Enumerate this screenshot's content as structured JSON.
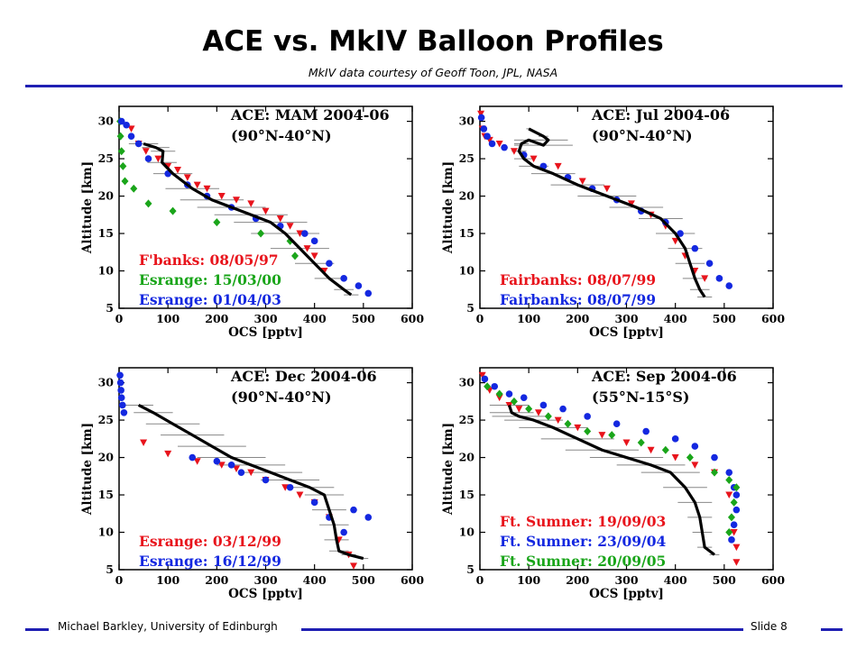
{
  "slide": {
    "title": "ACE vs. MkIV Balloon Profiles",
    "subtitle": "MkIV data courtesy of Geoff Toon, JPL, NASA",
    "footer_left": "Michael Barkley, University of Edinburgh",
    "footer_right": "Slide 8"
  },
  "colors": {
    "accent": "#1f1fb3",
    "red": "#e8141c",
    "green": "#1aa51a",
    "blue": "#1428e0",
    "ace": "#000000",
    "errorbar": "#888888"
  },
  "chart_data": [
    {
      "type": "line",
      "title": "ACE: MAM 2004-06",
      "region": "(90°N-40°N)",
      "xlabel": "OCS [pptv]",
      "ylabel": "Altitude [km]",
      "xlim": [
        0,
        600
      ],
      "ylim": [
        5,
        32
      ],
      "xticks": [
        0,
        100,
        200,
        300,
        400,
        500,
        600
      ],
      "yticks": [
        5,
        10,
        15,
        20,
        25,
        30
      ],
      "ace": {
        "x": [
          50,
          75,
          90,
          88,
          110,
          150,
          190,
          230,
          270,
          310,
          340,
          370,
          400,
          430,
          460,
          475
        ],
        "y": [
          27,
          26.5,
          26,
          24.5,
          23,
          21,
          19.5,
          18.5,
          17.5,
          16.5,
          15,
          13,
          11,
          9,
          7.5,
          6.8
        ],
        "err_halfwidth": [
          30,
          28,
          25,
          30,
          40,
          55,
          65,
          70,
          75,
          75,
          70,
          60,
          40,
          30,
          20,
          15
        ]
      },
      "series": [
        {
          "name": "F'banks: 08/05/97",
          "color": "red",
          "marker": "triangle",
          "x": [
            25,
            40,
            55,
            80,
            100,
            120,
            140,
            160,
            180,
            210,
            240,
            270,
            300,
            330,
            350,
            370,
            385,
            400,
            420
          ],
          "y": [
            29,
            27,
            26,
            25,
            24,
            23.5,
            22.5,
            21.5,
            21,
            20,
            19.5,
            19,
            18,
            17,
            16,
            15,
            13,
            12,
            10
          ]
        },
        {
          "name": "Esrange: 15/03/00",
          "color": "green",
          "marker": "diamond",
          "x": [
            2,
            3,
            5,
            8,
            12,
            30,
            60,
            110,
            200,
            290,
            350,
            360
          ],
          "y": [
            30,
            28,
            26,
            24,
            22,
            21,
            19,
            18,
            16.5,
            15,
            14,
            12
          ]
        },
        {
          "name": "Esrange: 01/04/03",
          "color": "blue",
          "marker": "circle",
          "x": [
            5,
            15,
            25,
            40,
            60,
            100,
            140,
            180,
            230,
            280,
            330,
            380,
            400,
            430,
            460,
            490,
            510
          ],
          "y": [
            30,
            29.5,
            28,
            27,
            25,
            23,
            21.5,
            20,
            18.5,
            17,
            16,
            15,
            14,
            11,
            9,
            8,
            7
          ]
        }
      ]
    },
    {
      "type": "line",
      "title": "ACE: Jul 2004-06",
      "region": "(90°N-40°N)",
      "xlabel": "OCS [pptv]",
      "ylabel": "Altitude [km]",
      "xlim": [
        0,
        600
      ],
      "ylim": [
        5,
        32
      ],
      "xticks": [
        0,
        100,
        200,
        300,
        400,
        500,
        600
      ],
      "yticks": [
        5,
        10,
        15,
        20,
        25,
        30
      ],
      "ace": {
        "x": [
          100,
          130,
          140,
          130,
          100,
          85,
          80,
          90,
          110,
          150,
          200,
          260,
          320,
          370,
          400,
          420,
          430,
          440,
          450,
          460
        ],
        "y": [
          29,
          28,
          27.5,
          26.8,
          27.5,
          27,
          26,
          25,
          24,
          23,
          21.5,
          20,
          18.5,
          17,
          15,
          13,
          11,
          9,
          7.5,
          6.5
        ],
        "err_halfwidth": [
          5,
          10,
          40,
          60,
          30,
          15,
          15,
          20,
          30,
          45,
          55,
          60,
          55,
          45,
          40,
          35,
          30,
          25,
          20,
          15
        ]
      },
      "series": [
        {
          "name": "Fairbanks: 08/07/99",
          "color": "red",
          "marker": "triangle",
          "x": [
            2,
            5,
            10,
            20,
            40,
            70,
            110,
            160,
            210,
            260,
            310,
            350,
            380,
            400,
            420,
            440,
            460
          ],
          "y": [
            31,
            29,
            28,
            27.5,
            27,
            26,
            25,
            24,
            22,
            21,
            19,
            17.5,
            16,
            14,
            12,
            10,
            9
          ]
        },
        {
          "name": "Fairbanks: 08/07/99",
          "color": "blue",
          "marker": "circle",
          "x": [
            3,
            8,
            15,
            25,
            50,
            90,
            130,
            180,
            230,
            280,
            330,
            380,
            410,
            440,
            470,
            490,
            510
          ],
          "y": [
            30.5,
            29,
            28,
            27,
            26.5,
            25.5,
            24,
            22.5,
            21,
            19.5,
            18,
            16.5,
            15,
            13,
            11,
            9,
            8
          ]
        }
      ]
    },
    {
      "type": "line",
      "title": "ACE: Dec 2004-06",
      "region": "(90°N-40°N)",
      "xlabel": "OCS [pptv]",
      "ylabel": "Altitude [km]",
      "xlim": [
        0,
        600
      ],
      "ylim": [
        5,
        32
      ],
      "xticks": [
        0,
        100,
        200,
        300,
        400,
        500,
        600
      ],
      "yticks": [
        5,
        10,
        15,
        20,
        25,
        30
      ],
      "ace": {
        "x": [
          40,
          70,
          110,
          150,
          190,
          230,
          270,
          310,
          350,
          390,
          420,
          430,
          440,
          445,
          450,
          470,
          500
        ],
        "y": [
          27,
          26,
          24.5,
          23,
          21.5,
          20,
          19,
          18,
          17,
          16,
          15,
          13,
          11,
          9,
          7.5,
          7,
          6.5
        ],
        "err_halfwidth": [
          30,
          40,
          55,
          65,
          70,
          70,
          70,
          65,
          60,
          50,
          40,
          35,
          30,
          25,
          20,
          15,
          10
        ]
      },
      "series": [
        {
          "name": "Esrange: 03/12/99",
          "color": "red",
          "marker": "triangle",
          "x": [
            50,
            100,
            160,
            210,
            240,
            270,
            300,
            340,
            370,
            400,
            430,
            450,
            470,
            480
          ],
          "y": [
            22,
            20.5,
            19.5,
            19,
            18.5,
            18,
            17,
            16,
            15,
            14,
            12,
            9,
            7,
            5.5
          ]
        },
        {
          "name": "Esrange: 16/12/99",
          "color": "blue",
          "marker": "circle",
          "x": [
            2,
            3,
            4,
            5,
            7,
            10,
            150,
            200,
            230,
            250,
            300,
            350,
            400,
            430,
            460,
            480,
            510
          ],
          "y": [
            31,
            30,
            29,
            28,
            27,
            26,
            20,
            19.5,
            19,
            18,
            17,
            16,
            14,
            12,
            10,
            13,
            12
          ]
        }
      ]
    },
    {
      "type": "line",
      "title": "ACE: Sep 2004-06",
      "region": "(55°N-15°S)",
      "xlabel": "OCS [pptv]",
      "ylabel": "Altitude [km]",
      "xlim": [
        0,
        600
      ],
      "ylim": [
        5,
        32
      ],
      "xticks": [
        0,
        100,
        200,
        300,
        400,
        500,
        600
      ],
      "yticks": [
        5,
        10,
        15,
        20,
        25,
        30
      ],
      "ace": {
        "x": [
          60,
          65,
          80,
          110,
          150,
          200,
          250,
          300,
          350,
          390,
          420,
          440,
          450,
          455,
          460,
          480
        ],
        "y": [
          27,
          26,
          25.5,
          25,
          24,
          22.5,
          21,
          20,
          19,
          18,
          16,
          14,
          12,
          10,
          8,
          7
        ],
        "err_halfwidth": [
          40,
          45,
          55,
          60,
          70,
          75,
          75,
          75,
          70,
          60,
          45,
          35,
          25,
          20,
          15,
          10
        ]
      },
      "series": [
        {
          "name": "Ft. Sumner: 19/09/03",
          "color": "red",
          "marker": "triangle",
          "x": [
            5,
            20,
            40,
            60,
            80,
            120,
            160,
            200,
            250,
            300,
            350,
            400,
            440,
            480,
            510,
            520,
            525,
            525
          ],
          "y": [
            31,
            29,
            28,
            27,
            26.5,
            26,
            25,
            24,
            23,
            22,
            21,
            20,
            19,
            18,
            15,
            10,
            8,
            6
          ]
        },
        {
          "name": "Ft. Sumner: 23/09/04",
          "color": "blue",
          "marker": "circle",
          "x": [
            10,
            30,
            60,
            90,
            130,
            170,
            220,
            280,
            340,
            400,
            440,
            480,
            510,
            520,
            525,
            525,
            520,
            515
          ],
          "y": [
            30.5,
            29.5,
            28.5,
            28,
            27,
            26.5,
            25.5,
            24.5,
            23.5,
            22.5,
            21.5,
            20,
            18,
            16,
            15,
            13,
            11,
            9
          ]
        },
        {
          "name": "Ft. Sumner: 20/09/05",
          "color": "green",
          "marker": "diamond",
          "x": [
            15,
            40,
            70,
            100,
            140,
            180,
            220,
            270,
            330,
            380,
            430,
            480,
            510,
            525,
            520,
            515,
            510
          ],
          "y": [
            29.5,
            28.5,
            27.5,
            26.5,
            25.5,
            24.5,
            23.5,
            23,
            22,
            21,
            20,
            18,
            17,
            16,
            14,
            12,
            10
          ]
        }
      ]
    }
  ]
}
